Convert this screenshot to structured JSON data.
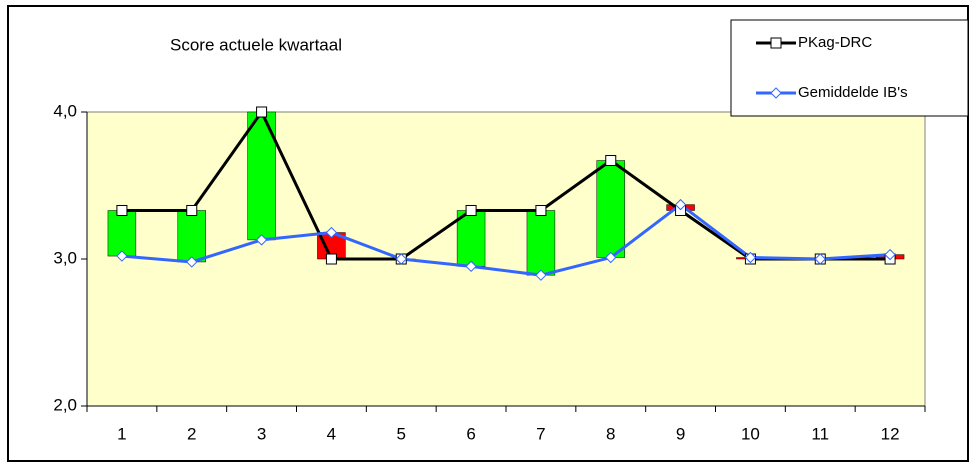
{
  "chart_data": {
    "type": "line",
    "title": "Score actuele kwartaal",
    "categories": [
      "1",
      "2",
      "3",
      "4",
      "5",
      "6",
      "7",
      "8",
      "9",
      "10",
      "11",
      "12"
    ],
    "series": [
      {
        "name": "PKag-DRC",
        "color": "#000000",
        "marker": "square",
        "values": [
          3.33,
          3.33,
          4.0,
          3.0,
          3.0,
          3.33,
          3.33,
          3.67,
          3.33,
          3.0,
          3.0,
          3.0
        ]
      },
      {
        "name": "Gemiddelde IB's",
        "color": "#3366ff",
        "marker": "diamond",
        "values": [
          3.02,
          2.98,
          3.13,
          3.18,
          3.0,
          2.95,
          2.89,
          3.01,
          3.37,
          3.01,
          3.0,
          3.03
        ]
      }
    ],
    "updown_bars": {
      "up_color": "#00ff00",
      "down_color": "#ff0000"
    },
    "ylim": [
      2,
      4
    ],
    "yticks": [
      {
        "value": 2,
        "label": "2,0"
      },
      {
        "value": 3,
        "label": "3,0"
      },
      {
        "value": 4,
        "label": "4,0"
      }
    ],
    "grid": false,
    "plot_background": "#ffffcc",
    "legend": "top-right"
  }
}
